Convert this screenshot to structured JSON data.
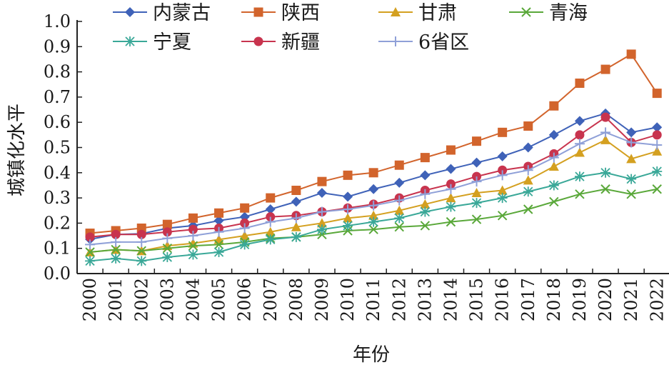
{
  "chart_data": {
    "type": "line",
    "title": "",
    "xlabel": "年份",
    "ylabel": "城镇化水平",
    "ylim": [
      0.0,
      1.0
    ],
    "yticks": [
      "0.0",
      "0.1",
      "0.2",
      "0.3",
      "0.4",
      "0.5",
      "0.6",
      "0.7",
      "0.8",
      "0.9",
      "1.0"
    ],
    "categories": [
      "2000",
      "2001",
      "2002",
      "2003",
      "2004",
      "2005",
      "2006",
      "2007",
      "2008",
      "2009",
      "2010",
      "2011",
      "2012",
      "2013",
      "2014",
      "2015",
      "2016",
      "2017",
      "2018",
      "2019",
      "2020",
      "2021",
      "2022"
    ],
    "legend_position": "top",
    "grid": false,
    "series": [
      {
        "name": "内蒙古",
        "color": "#3f62b8",
        "marker": "diamond",
        "values": [
          0.136,
          0.155,
          0.158,
          0.18,
          0.19,
          0.21,
          0.225,
          0.255,
          0.285,
          0.32,
          0.305,
          0.335,
          0.36,
          0.39,
          0.415,
          0.44,
          0.465,
          0.5,
          0.55,
          0.605,
          0.635,
          0.56,
          0.58
        ]
      },
      {
        "name": "陕西",
        "color": "#d2642c",
        "marker": "square",
        "values": [
          0.16,
          0.17,
          0.18,
          0.195,
          0.22,
          0.24,
          0.26,
          0.3,
          0.33,
          0.365,
          0.39,
          0.4,
          0.43,
          0.46,
          0.49,
          0.525,
          0.56,
          0.585,
          0.665,
          0.755,
          0.81,
          0.87,
          0.715
        ]
      },
      {
        "name": "甘肃",
        "color": "#d4a020",
        "marker": "triangle",
        "values": [
          0.085,
          0.095,
          0.09,
          0.11,
          0.12,
          0.135,
          0.15,
          0.165,
          0.185,
          0.2,
          0.22,
          0.23,
          0.25,
          0.275,
          0.3,
          0.32,
          0.33,
          0.37,
          0.425,
          0.48,
          0.53,
          0.455,
          0.485
        ]
      },
      {
        "name": "青海",
        "color": "#5aa83a",
        "marker": "x",
        "values": [
          0.085,
          0.095,
          0.09,
          0.1,
          0.11,
          0.115,
          0.125,
          0.14,
          0.145,
          0.155,
          0.17,
          0.175,
          0.185,
          0.19,
          0.205,
          0.215,
          0.23,
          0.255,
          0.285,
          0.315,
          0.335,
          0.315,
          0.335
        ]
      },
      {
        "name": "宁夏",
        "color": "#3aa898",
        "marker": "asterisk",
        "values": [
          0.05,
          0.06,
          0.05,
          0.065,
          0.075,
          0.085,
          0.115,
          0.135,
          0.145,
          0.175,
          0.19,
          0.205,
          0.22,
          0.245,
          0.265,
          0.28,
          0.3,
          0.325,
          0.35,
          0.385,
          0.4,
          0.375,
          0.405
        ]
      },
      {
        "name": "新疆",
        "color": "#c8344e",
        "marker": "circle",
        "values": [
          0.145,
          0.155,
          0.155,
          0.165,
          0.175,
          0.18,
          0.2,
          0.225,
          0.23,
          0.245,
          0.26,
          0.275,
          0.3,
          0.33,
          0.355,
          0.385,
          0.41,
          0.425,
          0.475,
          0.55,
          0.62,
          0.52,
          0.55
        ]
      },
      {
        "name": "6省区",
        "color": "#8fa0d8",
        "marker": "plus",
        "values": [
          0.115,
          0.125,
          0.125,
          0.14,
          0.15,
          0.165,
          0.18,
          0.205,
          0.22,
          0.245,
          0.255,
          0.27,
          0.29,
          0.315,
          0.335,
          0.365,
          0.39,
          0.41,
          0.46,
          0.515,
          0.56,
          0.52,
          0.51
        ]
      }
    ]
  }
}
